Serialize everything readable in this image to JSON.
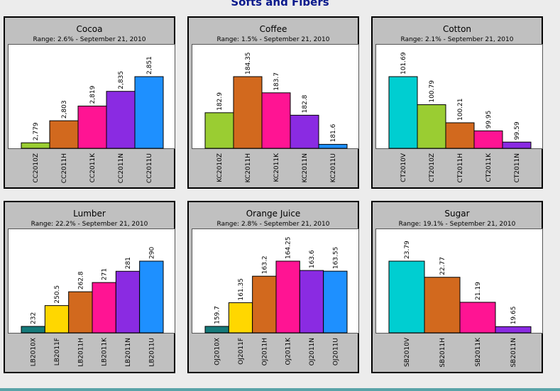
{
  "page": {
    "title": "Softs and Fibers"
  },
  "colors": {
    "green": "#9acd32",
    "orange": "#d2691e",
    "pink": "#ff1493",
    "purple": "#8a2be2",
    "blue": "#1e90ff",
    "cyan": "#00ced1",
    "teal": "#157a7a",
    "yellow": "#ffd700"
  },
  "chart_data": [
    {
      "type": "bar",
      "title": "Cocoa",
      "subtitle": "Range: 2.6% - September 21, 2010",
      "categories": [
        "CC2010Z",
        "CC2011H",
        "CC2011K",
        "CC2011N",
        "CC2011U"
      ],
      "values": [
        2779,
        2803,
        2819,
        2835,
        2851
      ],
      "labels": [
        "2,779",
        "2,803",
        "2,819",
        "2,835",
        "2,851"
      ],
      "colors": [
        "#9acd32",
        "#d2691e",
        "#ff1493",
        "#8a2be2",
        "#1e90ff"
      ],
      "ylim": [
        2773,
        2851
      ]
    },
    {
      "type": "bar",
      "title": "Coffee",
      "subtitle": "Range: 1.5% - September 21, 2010",
      "categories": [
        "KC2010Z",
        "KC2011H",
        "KC2011K",
        "KC2011N",
        "KC2011U"
      ],
      "values": [
        182.9,
        184.35,
        183.7,
        182.8,
        181.6
      ],
      "labels": [
        "182.9",
        "184.35",
        "183.7",
        "182.8",
        "181.6"
      ],
      "colors": [
        "#9acd32",
        "#d2691e",
        "#ff1493",
        "#8a2be2",
        "#1e90ff"
      ],
      "ylim": [
        181.47,
        184.35
      ]
    },
    {
      "type": "bar",
      "title": "Cotton",
      "subtitle": "Range: 2.1% - September 21, 2010",
      "categories": [
        "CT2010V",
        "CT2010Z",
        "CT2011H",
        "CT2011K",
        "CT2011N"
      ],
      "values": [
        101.69,
        100.79,
        100.21,
        99.95,
        99.59
      ],
      "labels": [
        "101.69",
        "100.79",
        "100.21",
        "99.95",
        "99.59"
      ],
      "colors": [
        "#00ced1",
        "#9acd32",
        "#d2691e",
        "#ff1493",
        "#8a2be2"
      ],
      "ylim": [
        99.39,
        101.69
      ]
    },
    {
      "type": "bar",
      "title": "Lumber",
      "subtitle": "Range: 22.2% - September 21, 2010",
      "categories": [
        "LB2010X",
        "LB2011F",
        "LB2011H",
        "LB2011K",
        "LB2011N",
        "LB2011U"
      ],
      "values": [
        232,
        250.5,
        262.8,
        271,
        281,
        290
      ],
      "labels": [
        "232",
        "250.5",
        "262.8",
        "271",
        "281",
        "290"
      ],
      "colors": [
        "#157a7a",
        "#ffd700",
        "#d2691e",
        "#ff1493",
        "#8a2be2",
        "#1e90ff"
      ],
      "ylim": [
        226.3,
        290
      ]
    },
    {
      "type": "bar",
      "title": "Orange Juice",
      "subtitle": "Range: 2.8% - September 21, 2010",
      "categories": [
        "OJ2010X",
        "OJ2011F",
        "OJ2011H",
        "OJ2011K",
        "OJ2011N",
        "OJ2011U"
      ],
      "values": [
        159.7,
        161.35,
        163.2,
        164.25,
        163.6,
        163.55
      ],
      "labels": [
        "159.7",
        "161.35",
        "163.2",
        "164.25",
        "163.6",
        "163.55"
      ],
      "colors": [
        "#157a7a",
        "#ffd700",
        "#d2691e",
        "#ff1493",
        "#8a2be2",
        "#1e90ff"
      ],
      "ylim": [
        159.25,
        164.25
      ]
    },
    {
      "type": "bar",
      "title": "Sugar",
      "subtitle": "Range: 19.1% - September 21, 2010",
      "categories": [
        "SB2010V",
        "SB2011H",
        "SB2011K",
        "SB2011N"
      ],
      "values": [
        23.79,
        22.77,
        21.19,
        19.65
      ],
      "labels": [
        "23.79",
        "22.77",
        "21.19",
        "19.65"
      ],
      "colors": [
        "#00ced1",
        "#d2691e",
        "#ff1493",
        "#8a2be2"
      ],
      "ylim": [
        19.26,
        23.79
      ]
    }
  ]
}
